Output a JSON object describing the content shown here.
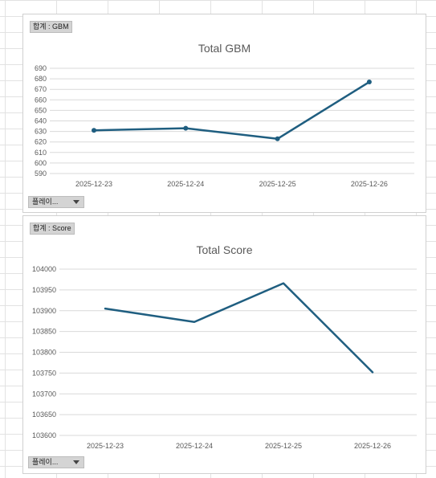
{
  "charts": [
    {
      "field_button": "합계 : GBM",
      "filter_label": "플레이...",
      "title": "Total GBM"
    },
    {
      "field_button": "합계 : Score",
      "filter_label": "플레이...",
      "title": "Total Score"
    }
  ],
  "colors": {
    "series": "#1f5e80",
    "grid": "#d9d9d9",
    "text": "#595959"
  },
  "chart_data": [
    {
      "type": "line",
      "title": "Total GBM",
      "categories": [
        "2025-12-23",
        "2025-12-24",
        "2025-12-25",
        "2025-12-26"
      ],
      "series": [
        {
          "values": [
            631,
            633,
            623,
            677
          ]
        }
      ],
      "ylim": [
        590,
        690
      ],
      "yticks": [
        590,
        600,
        610,
        620,
        630,
        640,
        650,
        660,
        670,
        680,
        690
      ],
      "markers": true,
      "grid": true
    },
    {
      "type": "line",
      "title": "Total Score",
      "categories": [
        "2025-12-23",
        "2025-12-24",
        "2025-12-25",
        "2025-12-26"
      ],
      "series": [
        {
          "values": [
            103905,
            103873,
            103966,
            103752
          ]
        }
      ],
      "ylim": [
        103600,
        104000
      ],
      "yticks": [
        103600,
        103650,
        103700,
        103750,
        103800,
        103850,
        103900,
        103950,
        104000
      ],
      "markers": false,
      "grid": true
    }
  ]
}
